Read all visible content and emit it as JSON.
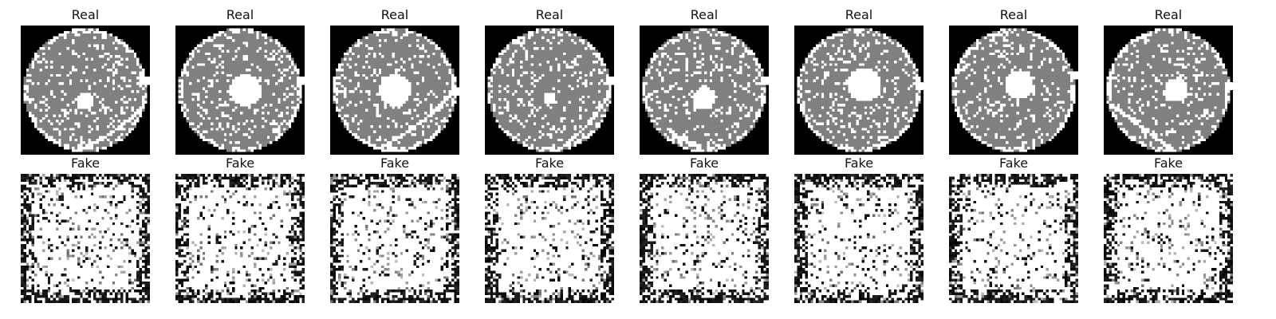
{
  "rows": [
    {
      "kind": "real",
      "titles": [
        "Real",
        "Real",
        "Real",
        "Real",
        "Real",
        "Real",
        "Real",
        "Real"
      ],
      "content": "wafer map: light grey disc on black background with bright speckle, a white central spot of varying size and a curved bright scratch line"
    },
    {
      "kind": "fake",
      "titles": [
        "Fake",
        "Fake",
        "Fake",
        "Fake",
        "Fake",
        "Fake",
        "Fake",
        "Fake"
      ],
      "content": "generated noise: dense white speckle pattern with dark noisy border"
    }
  ],
  "colors": {
    "background": "#000000",
    "disc_grey": "#808080",
    "speckle": "#ffffff",
    "title_text": "#111111"
  }
}
